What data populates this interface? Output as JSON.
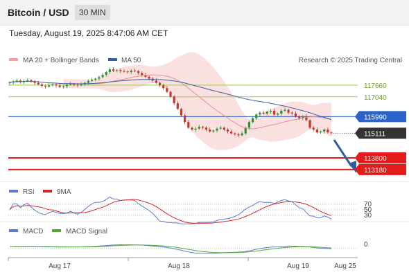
{
  "header": {
    "title": "Bitcoin / USD",
    "timeframe": "30 MIN"
  },
  "timestamp": "Tuesday, August 19, 2025 8:47:06 AM CET",
  "credit": "Research © 2025 Trading Central",
  "colors": {
    "bollinger": "#f4a0a0",
    "ma50": "#3a5f9e",
    "up": "#2f8f3a",
    "down": "#c0392b",
    "resistance": "#9acd52",
    "pivot": "#2a63c9",
    "support": "#e31b1b",
    "last": "#333333",
    "rsi": "#5b7bd5",
    "rsi_ma": "#d62728",
    "macd": "#5b7bd5",
    "macd_signal": "#52a82e"
  },
  "chart_data": [
    {
      "type": "candlestick",
      "legend": [
        "MA 20 + Bollinger Bands",
        "MA 50"
      ],
      "x_ticks": [
        "Aug 17",
        "Aug 18",
        "Aug 19",
        "Aug 25"
      ],
      "ylim": [
        112700,
        118500
      ],
      "levels": [
        {
          "label": "117660",
          "value": 117660,
          "kind": "resistance"
        },
        {
          "label": "117040",
          "value": 117040,
          "kind": "resistance"
        },
        {
          "label": "115990",
          "value": 115990,
          "kind": "pivot"
        },
        {
          "label": "115111",
          "value": 115111,
          "kind": "last"
        },
        {
          "label": "113800",
          "value": 113800,
          "kind": "support"
        },
        {
          "label": "113180",
          "value": 113180,
          "kind": "support"
        }
      ],
      "close": [
        117800,
        117850,
        117900,
        117820,
        117880,
        117920,
        117860,
        117780,
        117700,
        117620,
        117580,
        117650,
        117700,
        117640,
        117560,
        117600,
        117680,
        117720,
        117680,
        117650,
        117700,
        117780,
        117880,
        117940,
        118000,
        118080,
        118200,
        118350,
        118500,
        118420,
        118450,
        118400,
        118380,
        118350,
        118420,
        118400,
        118300,
        118200,
        118100,
        118000,
        117900,
        117780,
        117650,
        117500,
        117300,
        117050,
        116700,
        116400,
        116050,
        115700,
        115400,
        115300,
        115350,
        115450,
        115400,
        115300,
        115200,
        115250,
        115350,
        115400,
        115300,
        115200,
        115100,
        115050,
        115000,
        115100,
        115400,
        115700,
        115900,
        116100,
        116200,
        116150,
        116250,
        116300,
        116100,
        116150,
        116300,
        116350,
        116200,
        116150,
        116000,
        115900,
        116000,
        115800,
        115400,
        115300,
        115150,
        115200,
        115300,
        115150,
        115111
      ]
    },
    {
      "type": "line",
      "legend": [
        "RSI",
        "9MA"
      ],
      "y_ticks": [
        "70",
        "50",
        "30"
      ],
      "ylim": [
        0,
        100
      ]
    },
    {
      "type": "line",
      "legend": [
        "MACD",
        "MACD Signal"
      ],
      "y_ticks": [
        "0"
      ]
    }
  ]
}
